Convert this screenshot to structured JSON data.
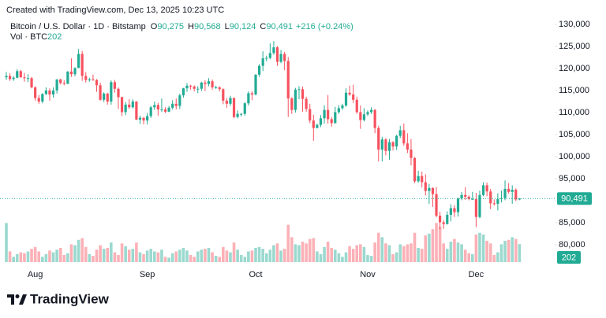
{
  "chart_data": {
    "type": "candlestick",
    "watermark": "Created with TradingView.com, Dec 13, 2025 10:23 UTC",
    "title": "Bitcoin / U.S. Dollar · 1D · Bitstamp",
    "ohlc_legend": [
      {
        "key": "O",
        "value": "90,275"
      },
      {
        "key": "H",
        "value": "90,568"
      },
      {
        "key": "L",
        "value": "90,124"
      },
      {
        "key": "C",
        "value": "90,491"
      }
    ],
    "change": "+216 (+0.24%)",
    "volume_legend": {
      "label": "Vol · BTC",
      "value": "202"
    },
    "price_label": "90,491",
    "volume_label": "202",
    "brand": "TradingView",
    "up_color": "#22ab94",
    "down_color": "#f7525f",
    "grid": false,
    "ylim": [
      74821,
      135536
    ],
    "yticks": [
      {
        "value": 80000,
        "label": "80,000"
      },
      {
        "value": 85000,
        "label": "85,000"
      },
      {
        "value": 90000,
        "label": "90,000"
      },
      {
        "value": 95000,
        "label": "95,000"
      },
      {
        "value": 100000,
        "label": "100,000"
      },
      {
        "value": 105000,
        "label": "105,000"
      },
      {
        "value": 110000,
        "label": "110,000"
      },
      {
        "value": 115000,
        "label": "115,000"
      },
      {
        "value": 120000,
        "label": "120,000"
      },
      {
        "value": 125000,
        "label": "125,000"
      },
      {
        "value": 130000,
        "label": "130,000"
      }
    ],
    "categories": [
      null,
      null,
      null,
      null,
      null,
      null,
      null,
      null,
      "Aug",
      null,
      null,
      null,
      null,
      null,
      null,
      null,
      null,
      null,
      null,
      null,
      null,
      null,
      null,
      null,
      null,
      null,
      null,
      null,
      null,
      null,
      null,
      null,
      null,
      null,
      null,
      null,
      null,
      null,
      null,
      "Sep",
      null,
      null,
      null,
      null,
      null,
      null,
      null,
      null,
      null,
      null,
      null,
      null,
      null,
      null,
      null,
      null,
      null,
      null,
      null,
      null,
      null,
      null,
      null,
      null,
      null,
      null,
      null,
      null,
      null,
      "Oct",
      null,
      null,
      null,
      null,
      null,
      null,
      null,
      null,
      null,
      null,
      null,
      null,
      null,
      null,
      null,
      null,
      null,
      null,
      null,
      null,
      null,
      null,
      null,
      null,
      null,
      null,
      null,
      null,
      null,
      null,
      "Nov",
      null,
      null,
      null,
      null,
      null,
      null,
      null,
      null,
      null,
      null,
      null,
      null,
      null,
      null,
      null,
      null,
      null,
      null,
      null,
      null,
      null,
      null,
      null,
      null,
      null,
      null,
      null,
      null,
      null,
      "Dec",
      null,
      null,
      null,
      null,
      null,
      null,
      null,
      null,
      null,
      null,
      null,
      null
    ],
    "open": [
      118000,
      118300,
      117600,
      117900,
      119400,
      118000,
      117800,
      117800,
      115700,
      113300,
      112500,
      114200,
      115000,
      114100,
      115000,
      117500,
      116700,
      116500,
      119300,
      118700,
      120100,
      123300,
      118300,
      117400,
      117500,
      117400,
      116200,
      112900,
      114300,
      112500,
      116900,
      115400,
      113500,
      110100,
      111800,
      111200,
      112500,
      108400,
      108800,
      108200,
      109200,
      111200,
      111700,
      110700,
      110700,
      110200,
      111100,
      112000,
      111500,
      113900,
      115500,
      116100,
      115900,
      115400,
      115400,
      116800,
      116500,
      117100,
      115700,
      115700,
      115300,
      112700,
      112000,
      113300,
      109000,
      109700,
      109700,
      112100,
      114400,
      114100,
      118600,
      120600,
      122300,
      122400,
      123500,
      124800,
      121500,
      123300,
      121700,
      113200,
      110600,
      115200,
      115300,
      113100,
      110800,
      108200,
      106500,
      107200,
      108700,
      110600,
      108500,
      107600,
      110100,
      111000,
      111600,
      114500,
      114100,
      112900,
      110100,
      108300,
      109600,
      110100,
      110600,
      106500,
      101600,
      103900,
      101300,
      103300,
      102300,
      104700,
      106000,
      103000,
      101600,
      99700,
      94400,
      95600,
      94200,
      92200,
      92900,
      91500,
      86600,
      85100,
      84700,
      86800,
      88300,
      87400,
      90500,
      91300,
      90900,
      90400,
      90400,
      86300,
      91300,
      93500,
      92100,
      89400,
      89300,
      90400,
      90600,
      92700,
      92000,
      92500,
      90275
    ],
    "high": [
      119200,
      118900,
      118300,
      119800,
      119700,
      119000,
      118700,
      118100,
      116000,
      114000,
      114400,
      115700,
      115500,
      115700,
      117600,
      117700,
      117300,
      119400,
      122300,
      120300,
      124400,
      124000,
      119200,
      117900,
      118600,
      117600,
      116800,
      114600,
      114500,
      117300,
      117400,
      115700,
      113600,
      112400,
      113000,
      113000,
      112600,
      109300,
      109000,
      109900,
      111500,
      112500,
      112200,
      113200,
      111200,
      111500,
      112800,
      113200,
      114300,
      115600,
      116700,
      116300,
      116200,
      116000,
      117000,
      117300,
      117800,
      117500,
      116100,
      116000,
      115500,
      113300,
      113800,
      113400,
      110500,
      109900,
      112400,
      114800,
      114800,
      118700,
      121000,
      123900,
      122900,
      125700,
      126200,
      125100,
      124200,
      123800,
      122600,
      113500,
      115600,
      116000,
      115900,
      113600,
      112000,
      109500,
      107500,
      109400,
      111700,
      114000,
      109000,
      111300,
      111700,
      112000,
      115500,
      116100,
      116300,
      113600,
      111600,
      111000,
      110500,
      111200,
      110800,
      107000,
      104500,
      104200,
      104000,
      103500,
      105000,
      107000,
      107500,
      105300,
      104000,
      99900,
      96800,
      96600,
      96000,
      93800,
      93000,
      93100,
      87500,
      85600,
      87600,
      89200,
      89000,
      90700,
      92000,
      93100,
      91200,
      92000,
      91800,
      92300,
      94200,
      94100,
      92700,
      90300,
      91700,
      92300,
      94600,
      94000,
      93500,
      92800,
      90568
    ],
    "low": [
      117400,
      117200,
      117200,
      117800,
      117900,
      117000,
      116900,
      115500,
      112700,
      112000,
      112100,
      114000,
      112700,
      113400,
      114300,
      116400,
      116200,
      116500,
      118100,
      118200,
      120100,
      117200,
      116800,
      117000,
      117200,
      114700,
      112700,
      112400,
      111800,
      111800,
      114500,
      110800,
      109200,
      109400,
      110800,
      110900,
      108300,
      107400,
      107300,
      107300,
      108800,
      110600,
      109300,
      110100,
      109900,
      110100,
      110700,
      110700,
      110800,
      113400,
      114700,
      115200,
      114800,
      114400,
      114900,
      114900,
      116000,
      115200,
      115400,
      114800,
      111900,
      111100,
      111500,
      108700,
      108700,
      109100,
      109300,
      111600,
      112800,
      113900,
      118100,
      119400,
      121600,
      122100,
      123100,
      120600,
      121200,
      119600,
      109000,
      109700,
      110000,
      113000,
      110200,
      110200,
      107600,
      103600,
      106400,
      106700,
      107500,
      107500,
      106800,
      107500,
      109700,
      110600,
      111300,
      113800,
      112200,
      109700,
      106300,
      108000,
      109200,
      109700,
      105300,
      98900,
      98900,
      100300,
      99300,
      101400,
      101500,
      104200,
      102500,
      100800,
      98000,
      94000,
      94100,
      93000,
      91200,
      89300,
      88600,
      86200,
      83500,
      83600,
      84600,
      85300,
      86300,
      86400,
      90100,
      90200,
      90100,
      90200,
      84000,
      86000,
      91000,
      91000,
      88100,
      88900,
      87800,
      89600,
      90100,
      91600,
      89300,
      89900,
      90124
    ],
    "close": [
      118300,
      117600,
      117900,
      119400,
      118000,
      117800,
      117800,
      115700,
      113300,
      112500,
      114200,
      115000,
      114100,
      115000,
      117500,
      116700,
      116500,
      119300,
      118700,
      120100,
      123300,
      118300,
      117400,
      117500,
      117400,
      116200,
      112900,
      114300,
      112500,
      116900,
      115400,
      113500,
      110100,
      111800,
      111200,
      112500,
      108400,
      108800,
      108200,
      109200,
      111200,
      111700,
      110700,
      110700,
      110200,
      111100,
      112000,
      111500,
      113900,
      115500,
      116100,
      115900,
      115400,
      115400,
      116800,
      116500,
      117100,
      115700,
      115700,
      115300,
      112700,
      112000,
      113300,
      109000,
      109700,
      109700,
      112100,
      114400,
      114100,
      118600,
      120600,
      122300,
      122400,
      123500,
      124800,
      121500,
      123300,
      121700,
      113200,
      110600,
      115200,
      115300,
      113100,
      110800,
      108200,
      106500,
      107200,
      108700,
      110600,
      108500,
      107600,
      110100,
      111000,
      111600,
      114500,
      114100,
      112900,
      110100,
      108300,
      109600,
      110100,
      110600,
      106500,
      101600,
      103900,
      101300,
      103300,
      102300,
      104700,
      106000,
      103000,
      101600,
      99700,
      94400,
      95600,
      94200,
      92200,
      92900,
      91500,
      86600,
      85100,
      84700,
      86800,
      88300,
      87400,
      90500,
      91300,
      90900,
      90400,
      90400,
      86300,
      91300,
      93500,
      92100,
      89400,
      89300,
      90400,
      90600,
      92700,
      92000,
      92500,
      90275,
      90491
    ],
    "volume": [
      440,
      120,
      60,
      90,
      110,
      100,
      120,
      150,
      170,
      120,
      60,
      90,
      130,
      110,
      140,
      160,
      80,
      100,
      200,
      190,
      250,
      270,
      170,
      90,
      70,
      140,
      190,
      150,
      160,
      220,
      110,
      80,
      210,
      180,
      140,
      150,
      220,
      110,
      90,
      130,
      150,
      120,
      110,
      140,
      60,
      50,
      100,
      120,
      140,
      160,
      130,
      80,
      60,
      120,
      140,
      150,
      160,
      110,
      70,
      60,
      170,
      130,
      110,
      220,
      140,
      80,
      60,
      120,
      130,
      160,
      170,
      150,
      100,
      140,
      190,
      210,
      130,
      150,
      420,
      280,
      200,
      190,
      230,
      210,
      260,
      270,
      120,
      90,
      170,
      230,
      160,
      140,
      100,
      60,
      110,
      180,
      150,
      190,
      200,
      170,
      80,
      70,
      220,
      330,
      280,
      210,
      190,
      90,
      110,
      200,
      180,
      200,
      210,
      330,
      160,
      150,
      300,
      320,
      370,
      440,
      400,
      210,
      150,
      230,
      260,
      220,
      200,
      140,
      100,
      90,
      310,
      330,
      310,
      240,
      210,
      80,
      110,
      200,
      240,
      250,
      280,
      260,
      202
    ]
  }
}
